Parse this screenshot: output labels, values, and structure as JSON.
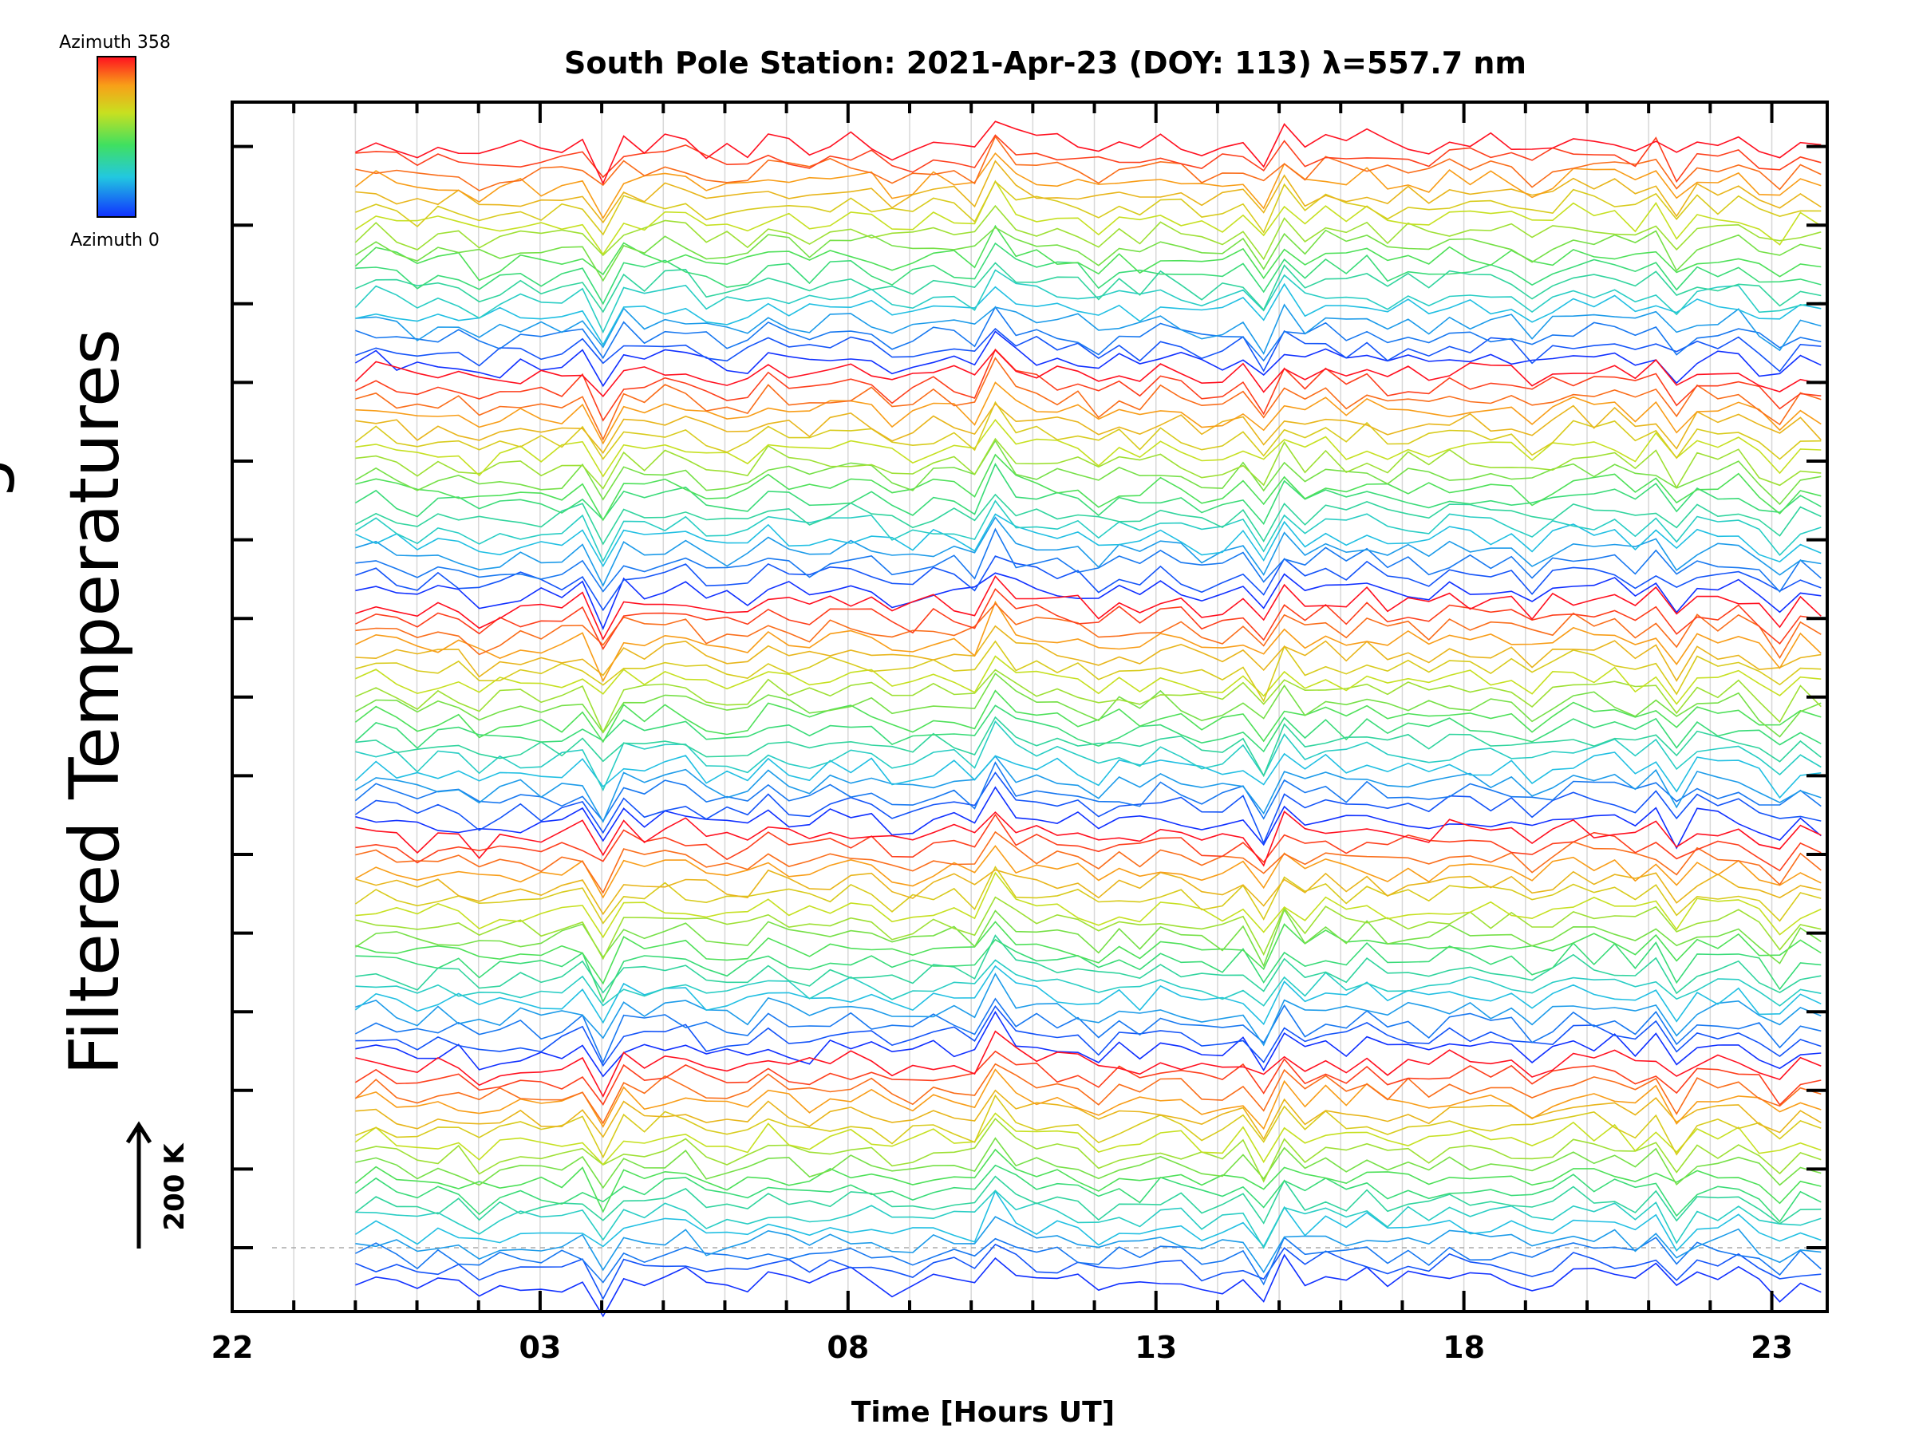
{
  "chart_data": {
    "type": "line",
    "title": "South Pole Station: 2021-Apr-23 (DOY: 113) λ=557.7 nm",
    "xlabel": "Time [Hours UT]",
    "ylabel": "Filtered Temperatures",
    "ylabel_partial": "g",
    "scale_label": "200 K",
    "x_ticks": [
      {
        "label": "22",
        "hour": 22
      },
      {
        "label": "03",
        "hour": 27
      },
      {
        "label": "08",
        "hour": 32
      },
      {
        "label": "13",
        "hour": 37
      },
      {
        "label": "18",
        "hour": 42
      },
      {
        "label": "23",
        "hour": 47
      }
    ],
    "xlim": [
      22,
      47.9
    ],
    "data_start_hour": 24,
    "data_end_hour": 47.8,
    "colorbar": {
      "top_label": "Azimuth  358",
      "bottom_label": "Azimuth  0",
      "azimuth_min": 0,
      "azimuth_max": 358,
      "colormap": "rainbow"
    },
    "groups": 5,
    "traces_per_group": 18,
    "note": "Stacked, filtered temperature time series; each trace is one azimuth bin, colour-coded by azimuth (blue=0°, red=358°)."
  }
}
